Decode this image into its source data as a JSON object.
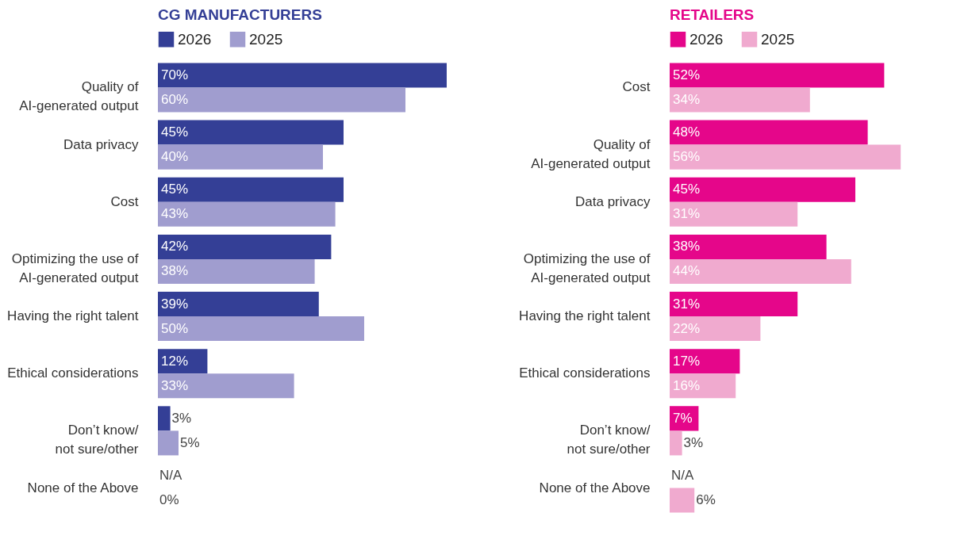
{
  "chart_data": [
    {
      "type": "bar",
      "orientation": "horizontal",
      "title": "CG MANUFACTURERS",
      "legend": "top left",
      "categories": [
        "Quality of AI-generated output",
        "Data privacy",
        "Cost",
        "Optimizing the use of AI-generated output",
        "Having the right talent",
        "Ethical considerations",
        "Don’t know/ not sure/other",
        "None of the Above"
      ],
      "series": [
        {
          "name": "2026",
          "color": "#343f96",
          "values": [
            70,
            45,
            45,
            42,
            39,
            12,
            3,
            null
          ],
          "value_labels": [
            "70%",
            "45%",
            "45%",
            "42%",
            "39%",
            "12%",
            "3%",
            "N/A"
          ]
        },
        {
          "name": "2025",
          "color": "#a09dcf",
          "values": [
            60,
            40,
            43,
            38,
            50,
            33,
            5,
            0
          ],
          "value_labels": [
            "60%",
            "40%",
            "43%",
            "38%",
            "50%",
            "33%",
            "5%",
            "0%"
          ]
        }
      ]
    },
    {
      "type": "bar",
      "orientation": "horizontal",
      "title": "RETAILERS",
      "legend": "top left",
      "categories": [
        "Cost",
        "Quality of AI-generated output",
        "Data privacy",
        "Optimizing the use of AI-generated output",
        "Having the right talent",
        "Ethical considerations",
        "Don’t know/ not sure/other",
        "None of the Above"
      ],
      "series": [
        {
          "name": "2026",
          "color": "#e5068a",
          "values": [
            52,
            48,
            45,
            38,
            31,
            17,
            7,
            null
          ],
          "value_labels": [
            "52%",
            "48%",
            "45%",
            "38%",
            "31%",
            "17%",
            "7%",
            "N/A"
          ]
        },
        {
          "name": "2025",
          "color": "#f0aacf",
          "values": [
            34,
            56,
            31,
            44,
            22,
            16,
            3,
            6
          ],
          "value_labels": [
            "34%",
            "56%",
            "31%",
            "44%",
            "22%",
            "16%",
            "3%",
            "6%"
          ]
        }
      ]
    }
  ]
}
